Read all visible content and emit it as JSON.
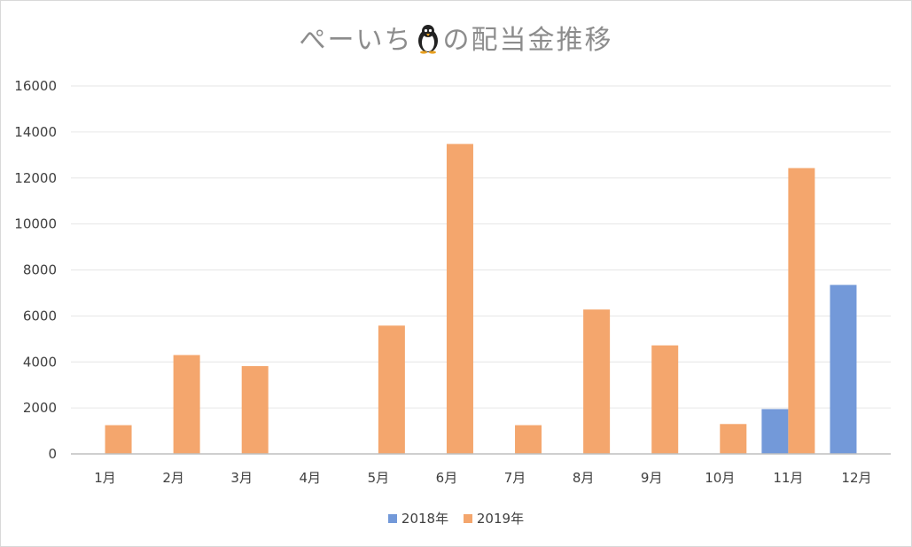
{
  "chart_data": {
    "type": "bar",
    "title_prefix": "ぺーいち",
    "title_suffix": "の配当金推移",
    "title_icon": "penguin-icon",
    "categories": [
      "1月",
      "2月",
      "3月",
      "4月",
      "5月",
      "6月",
      "7月",
      "8月",
      "9月",
      "10月",
      "11月",
      "12月"
    ],
    "series": [
      {
        "name": "2018年",
        "color": "#7399d9",
        "values": [
          0,
          0,
          0,
          0,
          0,
          0,
          0,
          0,
          0,
          0,
          1950,
          7350
        ]
      },
      {
        "name": "2019年",
        "color": "#f4a66d",
        "values": [
          1250,
          4300,
          3820,
          0,
          5580,
          13480,
          1250,
          6280,
          4720,
          1300,
          12430,
          0
        ]
      }
    ],
    "y_ticks": [
      "0",
      "2000",
      "4000",
      "6000",
      "8000",
      "10000",
      "12000",
      "14000",
      "16000"
    ],
    "ylim": [
      0,
      16000
    ],
    "grid": true,
    "legend_position": "bottom"
  }
}
